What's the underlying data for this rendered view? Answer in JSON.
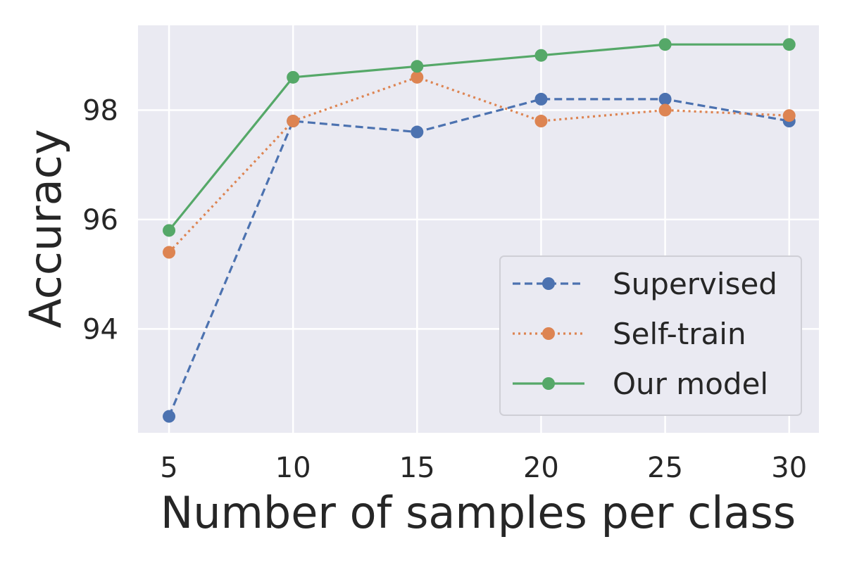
{
  "chart_data": {
    "type": "line",
    "title": "",
    "xlabel": "Number of samples per class",
    "ylabel": "Accuracy",
    "x": [
      5,
      10,
      15,
      20,
      25,
      30
    ],
    "xticks": [
      5,
      10,
      15,
      20,
      25,
      30
    ],
    "xtick_labels": [
      "5",
      "10",
      "15",
      "20",
      "25",
      "30"
    ],
    "yticks": [
      94,
      96,
      98
    ],
    "ytick_labels": [
      "94",
      "96",
      "98"
    ],
    "xlim": [
      3.75,
      31.2
    ],
    "ylim": [
      92.1,
      99.55
    ],
    "grid": true,
    "style": "seaborn-darkgrid",
    "legend_position": "bottom-right",
    "series": [
      {
        "name": "Supervised",
        "values": [
          92.4,
          97.8,
          97.6,
          98.2,
          98.2,
          97.8
        ],
        "color": "#4C72B0",
        "line_style": "dashed"
      },
      {
        "name": "Self-train",
        "values": [
          95.4,
          97.8,
          98.6,
          97.8,
          98.0,
          97.9
        ],
        "color": "#DD8452",
        "line_style": "dotted"
      },
      {
        "name": "Our model",
        "values": [
          95.8,
          98.6,
          98.8,
          99.0,
          99.2,
          99.2
        ],
        "color": "#55A868",
        "line_style": "solid"
      }
    ]
  }
}
